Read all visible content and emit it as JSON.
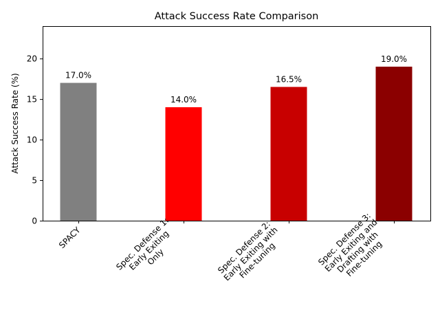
{
  "chart_data": {
    "type": "bar",
    "title": "Attack Success Rate Comparison",
    "xlabel": "",
    "ylabel": "Attack Success Rate (%)",
    "ylim": [
      0,
      24
    ],
    "yticks": [
      0,
      5,
      10,
      15,
      20
    ],
    "grid": false,
    "categories": [
      [
        "SPACY"
      ],
      [
        "Spec. Defense 1:",
        "Early Exiting",
        "Only"
      ],
      [
        "Spec. Defense 2:",
        "Early Exiting with",
        "Fine-tuning"
      ],
      [
        "Spec. Defense 3:",
        "Early Exiting and",
        "Drafting with",
        "Fine-tuning"
      ]
    ],
    "values": [
      17.0,
      14.0,
      16.5,
      19.0
    ],
    "value_labels": [
      "17.0%",
      "14.0%",
      "16.5%",
      "19.0%"
    ],
    "colors": [
      "#808080",
      "#ff0000",
      "#c80000",
      "#8b0000"
    ]
  }
}
